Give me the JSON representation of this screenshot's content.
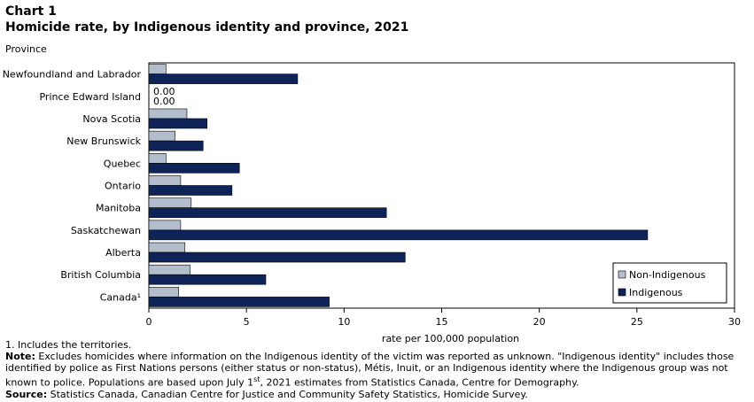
{
  "chart_data": {
    "type": "bar",
    "orientation": "horizontal",
    "title": "Chart 1",
    "subtitle": "Homicide rate, by Indigenous identity and province, 2021",
    "ylabel": "Province",
    "xlabel": "rate per 100,000 population",
    "xlim": [
      0,
      30
    ],
    "xticks": [
      "0",
      "5",
      "10",
      "15",
      "20",
      "25",
      "30"
    ],
    "categories": [
      "Newfoundland and Labrador",
      "Prince Edward Island",
      "Nova Scotia",
      "New Brunswick",
      "Quebec",
      "Ontario",
      "Manitoba",
      "Saskatchewan",
      "Alberta",
      "British Columbia",
      "Canada¹"
    ],
    "series": [
      {
        "name": "Non-Indigenous",
        "color": "#b3bdcc",
        "values": [
          0.88,
          0.0,
          1.95,
          1.34,
          0.88,
          1.63,
          2.17,
          1.63,
          1.85,
          2.11,
          1.53
        ]
      },
      {
        "name": "Indigenous",
        "color": "#0e2458",
        "values": [
          7.62,
          0.0,
          2.98,
          2.78,
          4.64,
          4.26,
          12.17,
          25.55,
          13.13,
          5.99,
          9.24
        ]
      }
    ],
    "data_labels": {
      "Prince Edward Island": [
        "0.00",
        "0.00"
      ]
    },
    "legend_position": "bottom-right",
    "grid": false
  },
  "footnotes": {
    "note1": "1. Includes the territories.",
    "note_label": "Note:",
    "note_pre": " Excludes homicides where information on the Indigenous identity of the victim was reported as unknown. \"Indigenous identity\" includes those identified by police as First Nations persons (either status or non-status), Métis, Inuit, or an Indigenous identity where the Indigenous group was not known to police. Populations are based upon July 1",
    "note_sup": "st",
    "note_post": ", 2021 estimates from Statistics Canada, Centre for Demography.",
    "source_label": "Source:",
    "source_text": " Statistics Canada, Canadian Centre for Justice and Community Safety Statistics, Homicide Survey."
  }
}
